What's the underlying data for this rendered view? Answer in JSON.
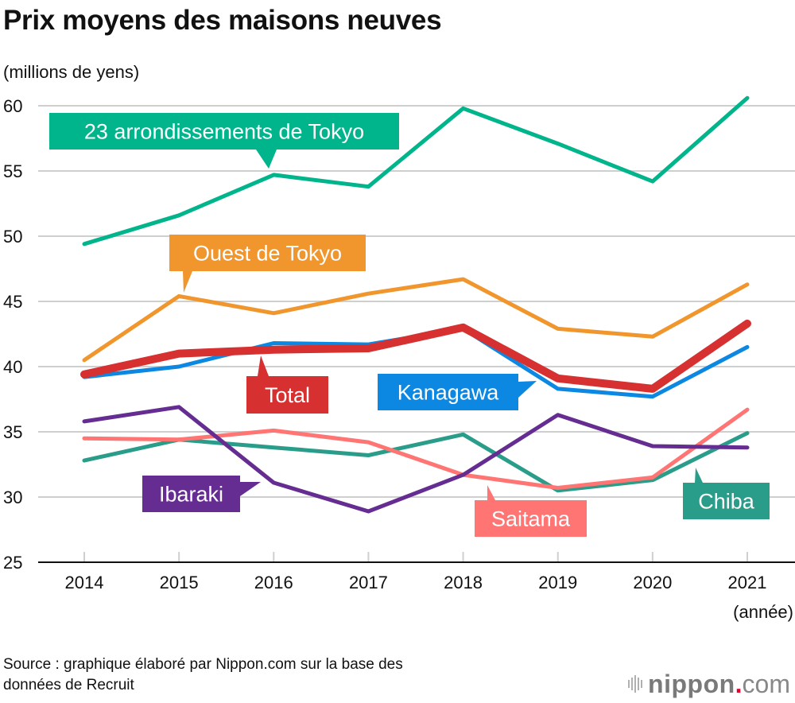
{
  "header": {
    "title": "Prix moyens des maisons neuves",
    "unit": "(millions de yens)"
  },
  "footer": {
    "source_line1": "Source : graphique élaboré par Nippon.com sur la base des",
    "source_line2": "données de Recruit",
    "logo_name": "nippon",
    "logo_dot": ".",
    "logo_suffix": "com"
  },
  "chart_data": {
    "type": "line",
    "title": "Prix moyens des maisons neuves",
    "ylabel": "(millions de yens)",
    "xlabel": "(année)",
    "x": [
      "2014",
      "2015",
      "2016",
      "2017",
      "2018",
      "2019",
      "2020",
      "2021"
    ],
    "ylim": [
      25,
      60
    ],
    "yticks": [
      25,
      30,
      35,
      40,
      45,
      50,
      55,
      60
    ],
    "grid": true,
    "legend": "inline-callouts",
    "series": [
      {
        "name": "23 arrondissements de Tokyo",
        "color": "#00b48c",
        "values": [
          49.4,
          51.6,
          54.7,
          53.8,
          59.8,
          57.1,
          54.2,
          60.6
        ]
      },
      {
        "name": "Ouest de Tokyo",
        "color": "#f0962d",
        "values": [
          40.5,
          45.4,
          44.1,
          45.6,
          46.7,
          42.9,
          42.3,
          46.3
        ]
      },
      {
        "name": "Kanagawa",
        "color": "#0c87e2",
        "values": [
          39.2,
          40.0,
          41.8,
          41.7,
          42.9,
          38.3,
          37.7,
          41.5
        ]
      },
      {
        "name": "Total",
        "color": "#d63031",
        "values": [
          39.4,
          41.0,
          41.3,
          41.4,
          43.0,
          39.1,
          38.3,
          43.3
        ]
      },
      {
        "name": "Ibaraki",
        "color": "#652d91",
        "values": [
          35.8,
          36.9,
          31.1,
          28.9,
          31.7,
          36.3,
          33.9,
          33.8
        ]
      },
      {
        "name": "Saitama",
        "color": "#ff7573",
        "values": [
          34.5,
          34.4,
          35.1,
          34.2,
          31.7,
          30.7,
          31.5,
          36.7
        ]
      },
      {
        "name": "Chiba",
        "color": "#2a9d8a",
        "values": [
          32.8,
          34.4,
          33.8,
          33.2,
          34.8,
          30.5,
          31.3,
          34.9
        ]
      }
    ]
  }
}
